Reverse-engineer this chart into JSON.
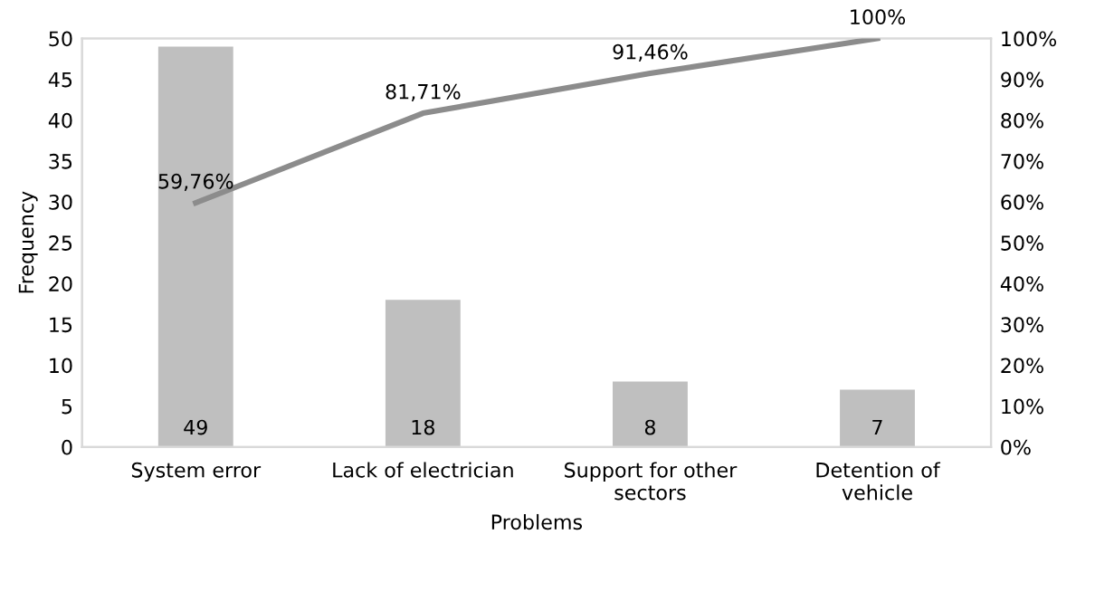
{
  "chart_data": {
    "type": "bar",
    "xlabel": "Problems",
    "ylabel": "Frequency",
    "categories": [
      "System error",
      "Lack of electrician",
      "Support for other\nsectors",
      "Detention of\nvehicle"
    ],
    "series": [
      {
        "color": "#bfbfbf",
        "values": [
          49,
          18,
          8,
          7
        ],
        "value_labels": [
          "49",
          "18",
          "8",
          "7"
        ]
      },
      {
        "type": "line",
        "axis": "y2",
        "color": "#8c8c8c",
        "values": [
          59.76,
          81.71,
          91.46,
          100
        ],
        "value_labels": [
          "59,76%",
          "81,71%",
          "91,46%",
          "100%"
        ],
        "marker": "none",
        "line_style": "solid"
      }
    ],
    "ylim": [
      0,
      50
    ],
    "yticks": [
      0,
      5,
      10,
      15,
      20,
      25,
      30,
      35,
      40,
      45,
      50
    ],
    "y2lim": [
      0,
      100
    ],
    "y2ticks": [
      {
        "value": 0,
        "label": "0%"
      },
      {
        "value": 10,
        "label": "10%"
      },
      {
        "value": 20,
        "label": "20%"
      },
      {
        "value": 30,
        "label": "30%"
      },
      {
        "value": 40,
        "label": "40%"
      },
      {
        "value": 50,
        "label": "50%"
      },
      {
        "value": 60,
        "label": "60%"
      },
      {
        "value": 70,
        "label": "70%"
      },
      {
        "value": 80,
        "label": "80%"
      },
      {
        "value": 90,
        "label": "90%"
      },
      {
        "value": 100,
        "label": "100%"
      }
    ],
    "grid": false,
    "legend": false
  }
}
